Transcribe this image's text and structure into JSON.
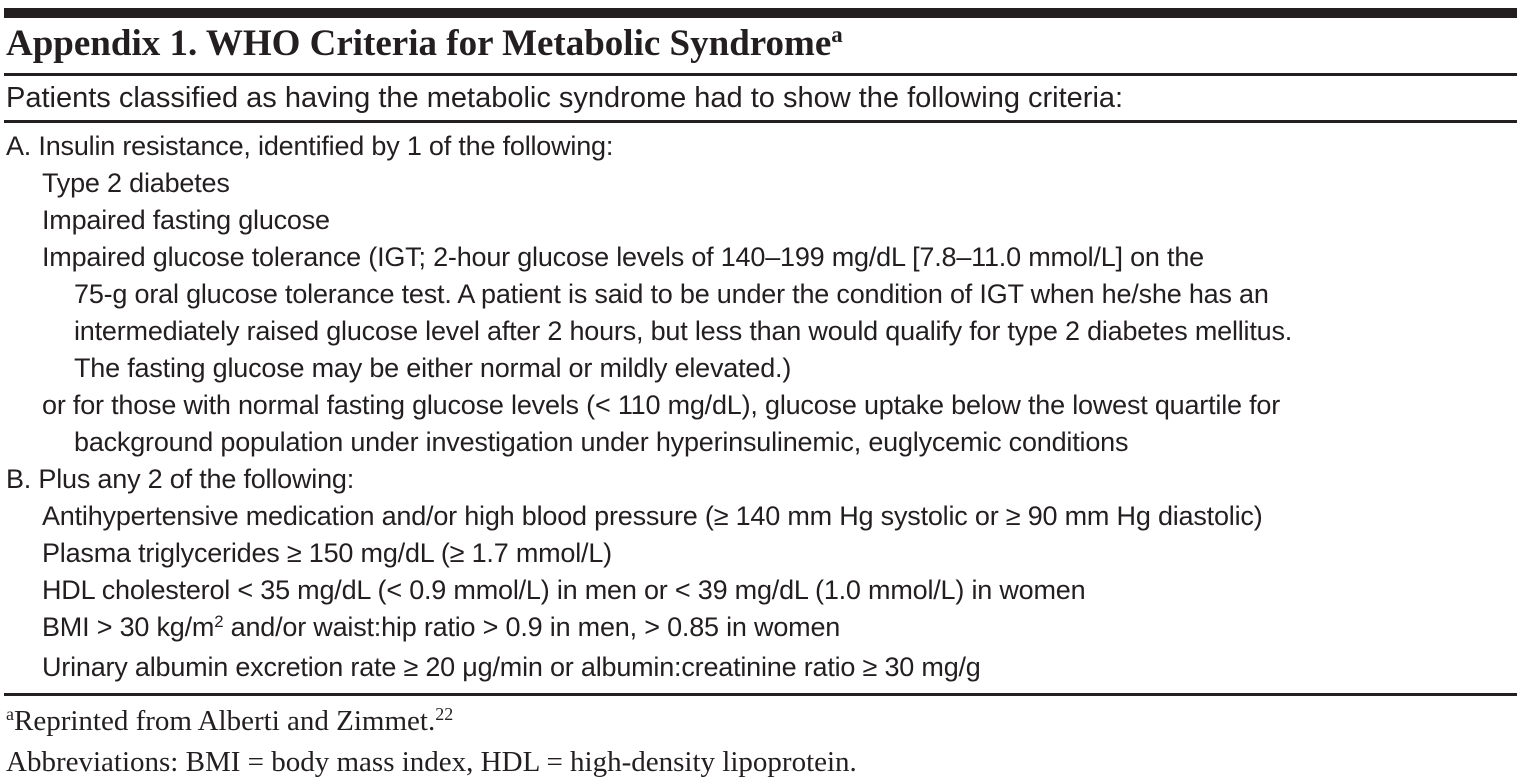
{
  "table": {
    "title": {
      "text": "Appendix 1. WHO Criteria for Metabolic Syndrome",
      "sup": "a"
    },
    "subtitle": "Patients classified as having the metabolic syndrome had to show the following criteria:",
    "criteria": [
      {
        "indent": 0,
        "segments": [
          {
            "t": "A. Insulin resistance, identified by 1 of the following:"
          }
        ]
      },
      {
        "indent": 1,
        "segments": [
          {
            "t": "Type 2 diabetes"
          }
        ]
      },
      {
        "indent": 1,
        "segments": [
          {
            "t": "Impaired fasting glucose"
          }
        ]
      },
      {
        "indent": 1,
        "segments": [
          {
            "t": "Impaired glucose tolerance (IGT; 2-hour glucose levels of 140–199 mg/dL [7.8–11.0 mmol/L] on the"
          }
        ]
      },
      {
        "indent": 2,
        "segments": [
          {
            "t": "75-g oral glucose tolerance test. A patient is said to be under the condition of IGT when he/she has an"
          }
        ]
      },
      {
        "indent": 2,
        "segments": [
          {
            "t": "intermediately raised glucose level after 2 hours, but less than would qualify for type 2 diabetes mellitus."
          }
        ]
      },
      {
        "indent": 2,
        "segments": [
          {
            "t": "The fasting glucose may be either normal or mildly elevated.)"
          }
        ]
      },
      {
        "indent": 1,
        "segments": [
          {
            "t": "or for those with normal fasting glucose levels (< 110 mg/dL), glucose uptake below the lowest quartile for"
          }
        ]
      },
      {
        "indent": 2,
        "segments": [
          {
            "t": "background population under investigation under hyperinsulinemic, euglycemic conditions"
          }
        ]
      },
      {
        "indent": 0,
        "segments": [
          {
            "t": "B. Plus any 2 of the following:"
          }
        ]
      },
      {
        "indent": 1,
        "segments": [
          {
            "t": "Antihypertensive medication and/or high blood pressure (≥ 140 mm Hg systolic or ≥ 90 mm Hg diastolic)"
          }
        ]
      },
      {
        "indent": 1,
        "segments": [
          {
            "t": "Plasma triglycerides ≥ 150 mg/dL (≥ 1.7 mmol/L)"
          }
        ]
      },
      {
        "indent": 1,
        "segments": [
          {
            "t": "HDL cholesterol < 35 mg/dL (< 0.9 mmol/L) in men or < 39 mg/dL (1.0 mmol/L) in women"
          }
        ]
      },
      {
        "indent": 1,
        "segments": [
          {
            "t": "BMI > 30 kg/m"
          },
          {
            "t": "2",
            "sup": true
          },
          {
            "t": " and/or waist:hip ratio > 0.9 in men, > 0.85 in women"
          }
        ]
      },
      {
        "indent": 1,
        "segments": [
          {
            "t": "Urinary albumin excretion rate ≥ 20 μg/min or albumin:creatinine ratio ≥ 30 mg/g"
          }
        ]
      }
    ],
    "footnotes": [
      {
        "segments": [
          {
            "t": "a",
            "sup": true
          },
          {
            "t": "Reprinted from Alberti and Zimmet."
          },
          {
            "t": "22",
            "sup": true
          }
        ]
      },
      {
        "segments": [
          {
            "t": "Abbreviations: BMI = body mass index, HDL = high-density lipoprotein."
          }
        ]
      }
    ],
    "colors": {
      "text": "#231f20",
      "rule": "#231f20",
      "background": "#ffffff"
    }
  }
}
